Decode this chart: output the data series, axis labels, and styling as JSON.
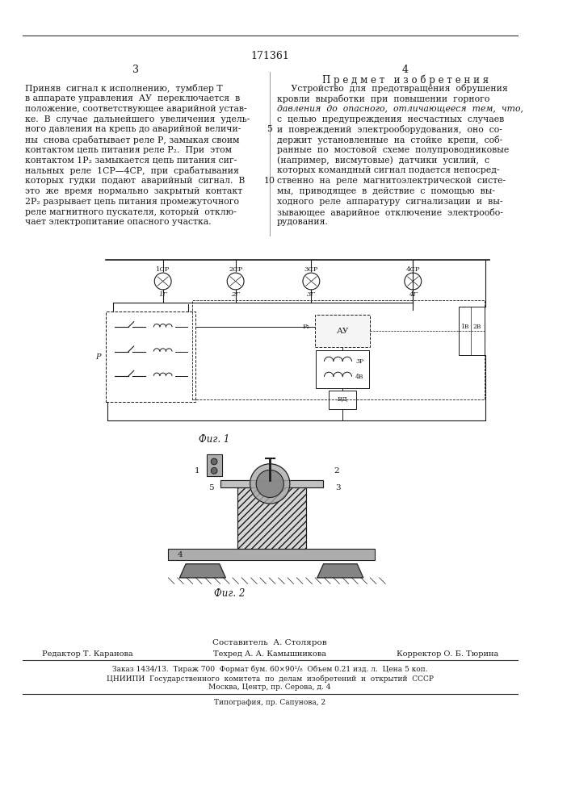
{
  "page_number": "171361",
  "col_left_num": "3",
  "col_right_num": "4",
  "right_heading": "П р е д м е т   и з о б р е т е н и я",
  "left_text": [
    "Приняв  сигнал к исполнению,  тумблер Т",
    "в аппарате управления  АУ  переключается  в",
    "положение, соответствующее аварийной устав-",
    "ке.  В  случае  дальнейшего  увеличения  удель-",
    "ного давления на крепь до аварийной величи-",
    "ны  снова срабатывает реле Р, замыкая своим",
    "контактом цепь питания реле Р₂.  При  этом",
    "контактом 1Р₂ замыкается цепь питания сиг-",
    "нальных  реле  1СР—4СР,  при  срабатывания",
    "которых  гудки  подают  аварийный  сигнал.  В",
    "это  же  время  нормально  закрытый  контакт",
    "2Р₂ разрывает цепь питания промежуточного",
    "реле магнитного пускателя, который  отклю-",
    "чает электропитание опасного участка."
  ],
  "right_text": [
    "     Устройство  для  предотвращения  обрушения",
    "кровли  выработки  при  повышении  горного",
    "давления  до  опасного,  отличающееся  тем,  что,",
    "с  целью  предупреждения  несчастных  случаев",
    "и  повреждений  электрооборудования,  оно  со-",
    "держит  установленные  на  стойке  крепи,  соб-",
    "ранные  по  мостовой  схеме  полупроводниковые",
    "(например,  висмутовые)  датчики  усилий,  с",
    "которых командный сигнал подается непосред-",
    "ственно  на  реле  магнитоэлектрической  систе-",
    "мы,  приводящее  в  действие  с  помощью  вы-",
    "ходного  реле  аппаратуру  сигнализации  и  вы-",
    "зывающее  аварийное  отключение  электрообо-",
    "рудования."
  ],
  "fig1_caption": "Фиг. 1",
  "fig2_caption": "Фиг. 2",
  "sestavitel": "Составитель  А. Столяров",
  "footer_line1_left": "Редактор Т. Каранова",
  "footer_line1_mid": "Техред А. А. Камышникова",
  "footer_line1_right": "Корректор О. Б. Тюрина",
  "footer_line2": "Заказ 1434/13.  Тираж 700  Формат бум. 60×90¹/₈  Объем 0.21 изд. л.  Цена 5 коп.",
  "footer_line3": "ЦНИИПИ  Государственного  комитета  по  делам  изобретений  и  открытий  СССР",
  "footer_line4": "Москва, Центр, пр. Серова, д. 4",
  "footer_line5": "Типография, пр. Сапунова, 2",
  "bg_color": "#ffffff",
  "text_color": "#1a1a1a",
  "separator_color": "#333333"
}
